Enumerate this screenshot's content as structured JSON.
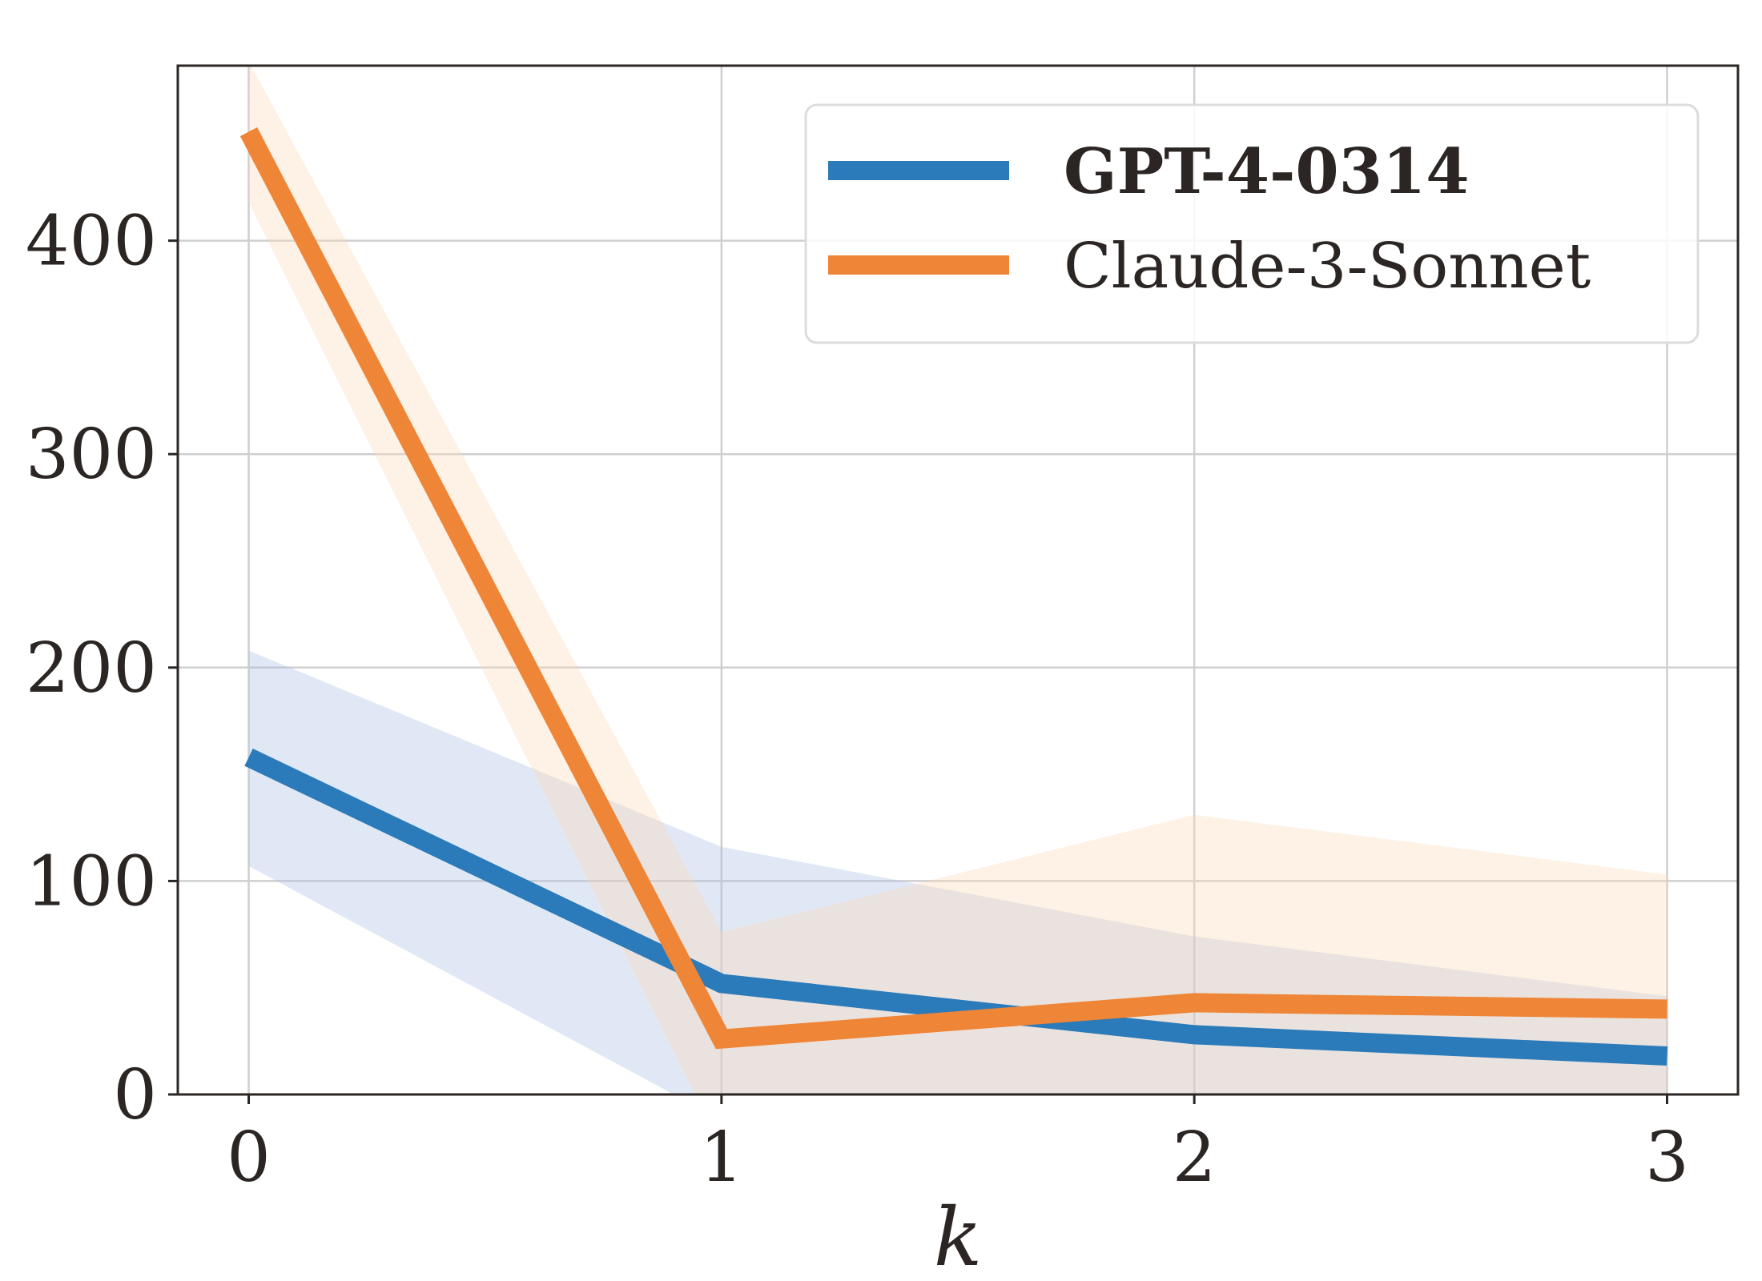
{
  "chart_data": {
    "type": "line",
    "xlabel": "k",
    "ylabel": "",
    "x": [
      0,
      1,
      2,
      3
    ],
    "xticks": [
      "0",
      "1",
      "2",
      "3"
    ],
    "xlim": [
      -0.15,
      3.15
    ],
    "yticks": [
      "0",
      "100",
      "200",
      "300",
      "400"
    ],
    "ylim": [
      0,
      482
    ],
    "grid": true,
    "legend_position": "top-right",
    "series": [
      {
        "name": "GPT-4-0314",
        "color": "#2b7bba",
        "band_color": "#a9bde3",
        "bold_label": true,
        "values": [
          158,
          52,
          28,
          18
        ],
        "lower": [
          107,
          -12,
          -18,
          -12
        ],
        "upper": [
          208,
          116,
          74,
          46
        ]
      },
      {
        "name": "Claude-3-Sonnet",
        "color": "#ef8536",
        "band_color": "#fdd7b4",
        "bold_label": false,
        "values": [
          451,
          26,
          43,
          40
        ],
        "lower": [
          418,
          -25,
          -20,
          -22
        ],
        "upper": [
          484,
          76,
          131,
          103
        ]
      }
    ]
  }
}
